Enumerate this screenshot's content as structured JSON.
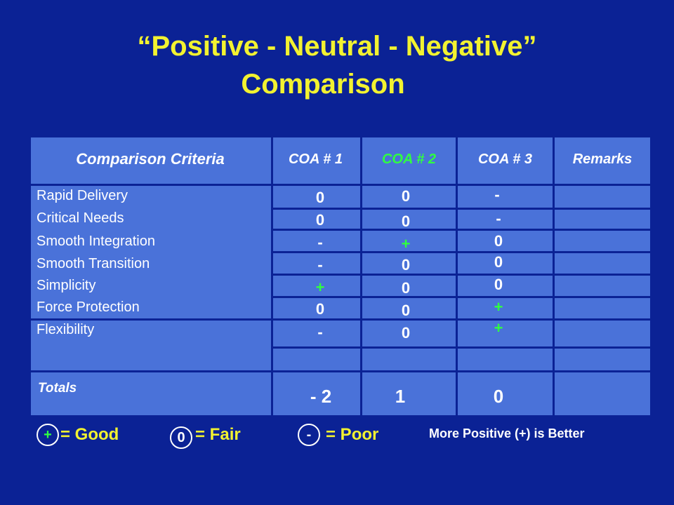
{
  "title": {
    "line1": "“Positive - Neutral - Negative”",
    "line2": "Comparison"
  },
  "table": {
    "headers": {
      "criteria": "Comparison Criteria",
      "coa1": "COA # 1",
      "coa2": "COA # 2",
      "coa3": "COA # 3",
      "remarks": "Remarks"
    },
    "rows": [
      {
        "criterion": "Rapid Delivery",
        "coa1": "0",
        "coa2": "0",
        "coa3": "-"
      },
      {
        "criterion": "Critical Needs",
        "coa1": "0",
        "coa2": "0",
        "coa3": "-"
      },
      {
        "criterion": "Smooth Integration",
        "coa1": "-",
        "coa2": "+",
        "coa3": "0"
      },
      {
        "criterion": "Smooth Transition",
        "coa1": "-",
        "coa2": "0",
        "coa3": "0"
      },
      {
        "criterion": "Simplicity",
        "coa1": "+",
        "coa2": "0",
        "coa3": "0"
      },
      {
        "criterion": "Force Protection",
        "coa1": "0",
        "coa2": "0",
        "coa3": "+"
      },
      {
        "criterion": "Flexibility",
        "coa1": "-",
        "coa2": "0",
        "coa3": "+"
      }
    ],
    "totals": {
      "label": "Totals",
      "coa1": "- 2",
      "coa2": "1",
      "coa3": "0"
    }
  },
  "legend": {
    "good_symbol": "+",
    "good_label": "= Good",
    "fair_symbol": "0",
    "fair_label": "= Fair",
    "poor_symbol": "-",
    "poor_label": "= Poor",
    "note": "More Positive (+) is Better"
  },
  "colors": {
    "background": "#0b2295",
    "table": "#4a72d9",
    "title": "#f2f230",
    "positive": "#30ff40"
  }
}
